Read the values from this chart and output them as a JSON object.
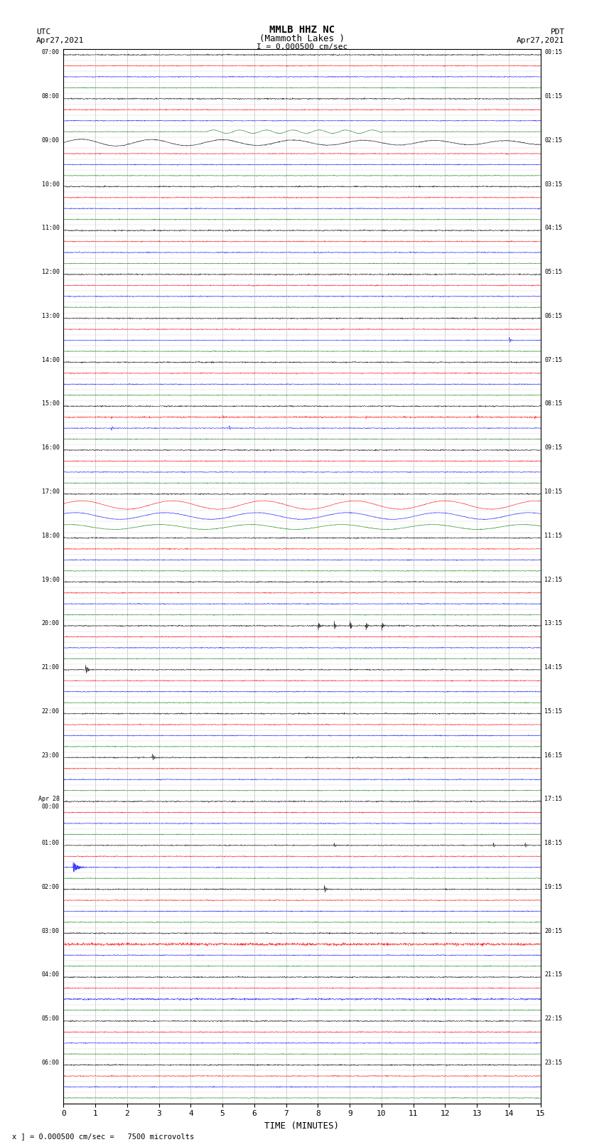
{
  "title_line1": "MMLB HHZ NC",
  "title_line2": "(Mammoth Lakes )",
  "scale_text": "I = 0.000500 cm/sec",
  "left_label": "UTC\nApr27,2021",
  "right_label": "PDT\nApr27,2021",
  "xlabel": "TIME (MINUTES)",
  "bottom_note": "x ] = 0.000500 cm/sec =   7500 microvolts",
  "left_times": [
    "07:00",
    "",
    "",
    "",
    "08:00",
    "",
    "",
    "",
    "09:00",
    "",
    "",
    "",
    "10:00",
    "",
    "",
    "",
    "11:00",
    "",
    "",
    "",
    "12:00",
    "",
    "",
    "",
    "13:00",
    "",
    "",
    "",
    "14:00",
    "",
    "",
    "",
    "15:00",
    "",
    "",
    "",
    "16:00",
    "",
    "",
    "",
    "17:00",
    "",
    "",
    "",
    "18:00",
    "",
    "",
    "",
    "19:00",
    "",
    "",
    "",
    "20:00",
    "",
    "",
    "",
    "21:00",
    "",
    "",
    "",
    "22:00",
    "",
    "",
    "",
    "23:00",
    "",
    "",
    "",
    "Apr 28\n00:00",
    "",
    "",
    "",
    "01:00",
    "",
    "",
    "",
    "02:00",
    "",
    "",
    "",
    "03:00",
    "",
    "",
    "",
    "04:00",
    "",
    "",
    "",
    "05:00",
    "",
    "",
    "",
    "06:00",
    "",
    ""
  ],
  "right_times": [
    "00:15",
    "",
    "",
    "",
    "01:15",
    "",
    "",
    "",
    "02:15",
    "",
    "",
    "",
    "03:15",
    "",
    "",
    "",
    "04:15",
    "",
    "",
    "",
    "05:15",
    "",
    "",
    "",
    "06:15",
    "",
    "",
    "",
    "07:15",
    "",
    "",
    "",
    "08:15",
    "",
    "",
    "",
    "09:15",
    "",
    "",
    "",
    "10:15",
    "",
    "",
    "",
    "11:15",
    "",
    "",
    "",
    "12:15",
    "",
    "",
    "",
    "13:15",
    "",
    "",
    "",
    "14:15",
    "",
    "",
    "",
    "15:15",
    "",
    "",
    "",
    "16:15",
    "",
    "",
    "",
    "17:15",
    "",
    "",
    "",
    "18:15",
    "",
    "",
    "",
    "19:15",
    "",
    "",
    "",
    "20:15",
    "",
    "",
    "",
    "21:15",
    "",
    "",
    "",
    "22:15",
    "",
    "",
    "",
    "23:15"
  ],
  "bg_color": "white",
  "grid_color": "#aaaaaa",
  "xmin": 0,
  "xmax": 15,
  "xticks": [
    0,
    1,
    2,
    3,
    4,
    5,
    6,
    7,
    8,
    9,
    10,
    11,
    12,
    13,
    14,
    15
  ]
}
